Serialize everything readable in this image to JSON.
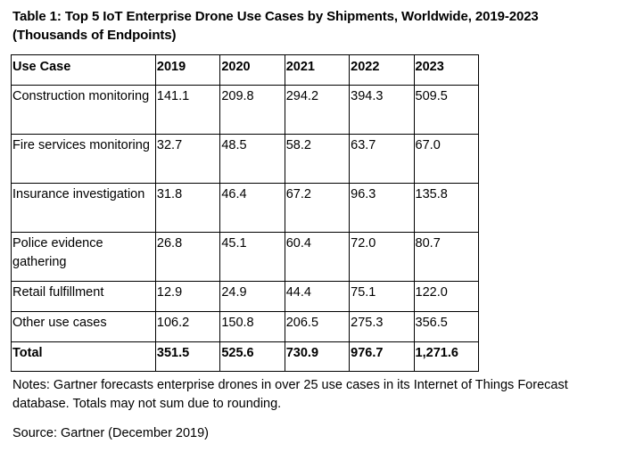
{
  "title": "Table 1: Top 5 IoT Enterprise Drone Use Cases by Shipments, Worldwide, 2019-2023 (Thousands of Endpoints)",
  "table": {
    "headers": [
      "Use Case",
      "2019",
      "2020",
      "2021",
      "2022",
      "2023"
    ],
    "rows": [
      [
        "Construction monitoring",
        "141.1",
        "209.8",
        "294.2",
        "394.3",
        "509.5"
      ],
      [
        "Fire services monitoring",
        "32.7",
        "48.5",
        "58.2",
        "63.7",
        "67.0"
      ],
      [
        "Insurance investigation",
        "31.8",
        "46.4",
        "67.2",
        "96.3",
        "135.8"
      ],
      [
        "Police evidence gathering",
        "26.8",
        "45.1",
        "60.4",
        "72.0",
        "80.7"
      ],
      [
        "Retail fulfillment",
        "12.9",
        "24.9",
        "44.4",
        "75.1",
        "122.0"
      ],
      [
        "Other use cases",
        "106.2",
        "150.8",
        "206.5",
        "275.3",
        "356.5"
      ]
    ],
    "total": [
      "Total",
      "351.5",
      "525.6",
      "730.9",
      "976.7",
      "1,271.6"
    ]
  },
  "notes": "Notes: Gartner forecasts enterprise drones in over 25 use cases in its Internet of Things Forecast database. Totals may not sum due to rounding.",
  "source": "Source: Gartner (December 2019)"
}
